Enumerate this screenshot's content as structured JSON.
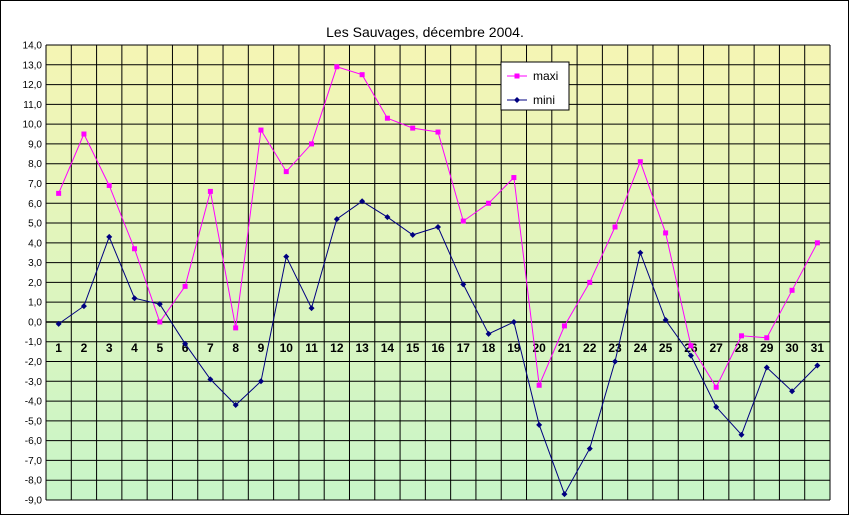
{
  "chart_data": {
    "type": "line",
    "title": "Les Sauvages, décembre 2004.",
    "xlabel": "",
    "ylabel": "",
    "x": [
      1,
      2,
      3,
      4,
      5,
      6,
      7,
      8,
      9,
      10,
      11,
      12,
      13,
      14,
      15,
      16,
      17,
      18,
      19,
      20,
      21,
      22,
      23,
      24,
      25,
      26,
      27,
      28,
      29,
      30,
      31
    ],
    "ylim": [
      -9,
      14
    ],
    "ytick_labels": [
      "14,0",
      "13,0",
      "12,0",
      "11,0",
      "10,0",
      "9,0",
      "8,0",
      "7,0",
      "6,0",
      "5,0",
      "4,0",
      "3,0",
      "2,0",
      "1,0",
      "0,0",
      "-1,0",
      "-2,0",
      "-3,0",
      "-4,0",
      "-5,0",
      "-6,0",
      "-7,0",
      "-8,0",
      "-9,0"
    ],
    "grid": true,
    "legend_position": "top-right",
    "background_gradient": [
      "#f5f5b4",
      "#c8f5c8"
    ],
    "series": [
      {
        "name": "maxi",
        "color": "#ff00ff",
        "values": [
          6.5,
          9.5,
          6.9,
          3.7,
          0.0,
          1.8,
          6.6,
          -0.3,
          9.7,
          7.6,
          9.0,
          12.9,
          12.5,
          10.3,
          9.8,
          9.6,
          5.1,
          6.0,
          7.3,
          -3.2,
          -0.2,
          2.0,
          4.8,
          8.1,
          4.5,
          -1.2,
          -3.3,
          -0.7,
          -0.8,
          1.6,
          4.0
        ]
      },
      {
        "name": "mini",
        "color": "#000080",
        "values": [
          -0.1,
          0.8,
          4.3,
          1.2,
          0.9,
          -1.1,
          -2.9,
          -4.2,
          -3.0,
          3.3,
          0.7,
          5.2,
          6.1,
          5.3,
          4.4,
          4.8,
          1.9,
          -0.6,
          0.0,
          -5.2,
          -8.7,
          -6.4,
          -2.0,
          3.5,
          0.1,
          -1.7,
          -4.3,
          -5.7,
          -2.3,
          -3.5,
          -2.2
        ]
      }
    ]
  }
}
